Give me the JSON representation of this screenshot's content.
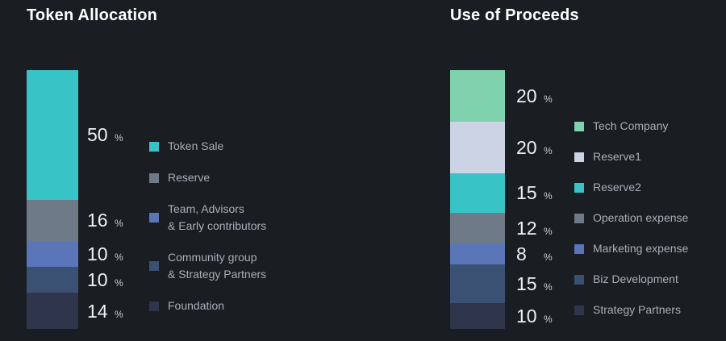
{
  "background_color": "#1a1d22",
  "chart_data": [
    {
      "type": "bar",
      "stacked": true,
      "orientation": "vertical",
      "title": "Token Allocation",
      "unit": "%",
      "value_total": 100,
      "legend_position": "right",
      "segments": [
        {
          "label": "Token Sale",
          "value": 50,
          "color": "#38c3c7"
        },
        {
          "label": "Reserve",
          "value": 16,
          "color": "#6f7a89"
        },
        {
          "label": "Team, Advisors\n& Early contributors",
          "value": 10,
          "color": "#5a75b8"
        },
        {
          "label": "Community group\n& Strategy Partners",
          "value": 10,
          "color": "#3a5173"
        },
        {
          "label": "Foundation",
          "value": 14,
          "color": "#2f364b"
        }
      ]
    },
    {
      "type": "bar",
      "stacked": true,
      "orientation": "vertical",
      "title": "Use of Proceeds",
      "unit": "%",
      "value_total": 100,
      "legend_position": "right",
      "segments": [
        {
          "label": "Tech Company",
          "value": 20,
          "color": "#80d2ae"
        },
        {
          "label": "Reserve1",
          "value": 20,
          "color": "#ccd3e4"
        },
        {
          "label": "Reserve2",
          "value": 15,
          "color": "#38c3c7"
        },
        {
          "label": "Operation expense",
          "value": 12,
          "color": "#6f7a89"
        },
        {
          "label": "Marketing expense",
          "value": 8,
          "color": "#5a75b8"
        },
        {
          "label": "Biz Development",
          "value": 15,
          "color": "#3a5173"
        },
        {
          "label": "Strategy Partners",
          "value": 10,
          "color": "#2f364b"
        }
      ]
    }
  ]
}
